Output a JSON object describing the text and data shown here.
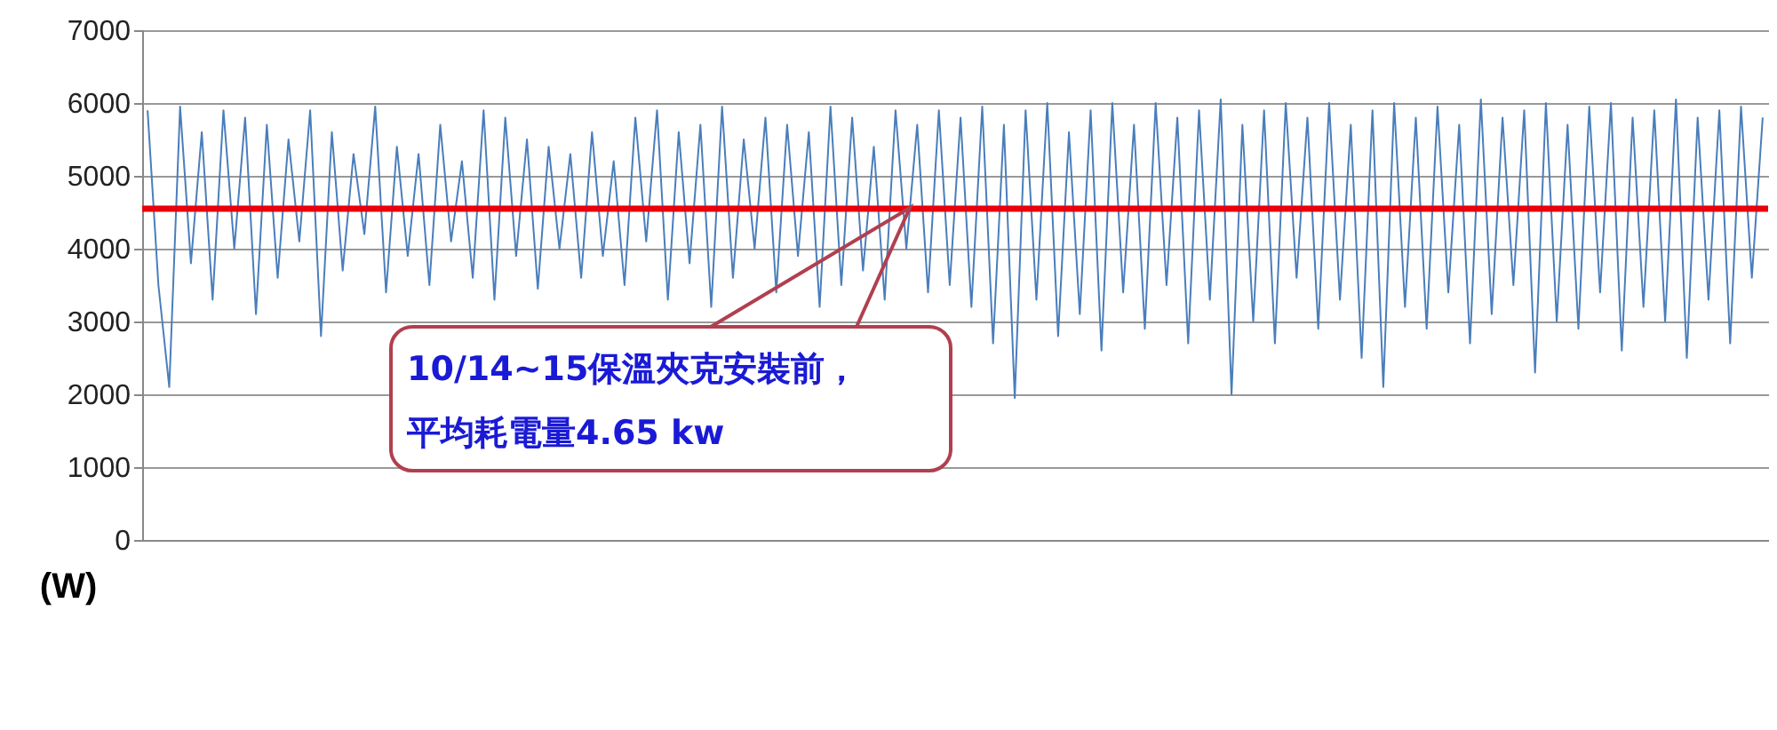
{
  "chart_data": {
    "type": "line",
    "ylabel": "(W)",
    "categories": [
      null,
      null,
      null,
      null,
      null,
      null,
      null,
      null,
      null,
      null,
      null,
      null,
      null,
      null,
      null,
      null,
      null,
      null,
      null,
      null,
      null,
      null,
      null,
      null,
      null,
      null,
      null,
      null,
      null,
      null,
      null,
      null,
      null,
      null,
      null,
      null,
      null,
      null,
      null,
      null,
      null,
      null,
      null,
      null,
      null,
      null,
      null,
      null,
      null,
      null,
      null,
      null,
      null,
      null,
      null,
      null,
      null,
      null,
      null,
      null,
      null,
      null,
      null,
      null,
      null,
      null,
      null,
      null,
      null,
      null,
      null,
      null,
      null,
      null,
      null,
      null,
      null,
      null,
      null,
      null,
      null,
      null,
      null,
      null,
      null,
      null,
      null,
      null,
      null,
      null,
      null,
      null,
      null,
      null,
      null,
      null,
      null,
      null,
      null,
      null,
      null,
      null,
      null,
      null,
      null,
      null,
      null,
      null,
      null,
      null,
      null,
      null,
      null,
      null,
      null,
      null,
      null,
      null,
      null,
      null,
      null,
      null,
      null,
      null,
      null,
      null,
      null,
      null,
      null,
      null,
      null,
      null,
      null,
      null,
      null,
      null,
      null,
      null,
      null,
      null,
      null,
      null,
      null,
      null,
      null,
      null,
      null,
      null,
      null,
      null
    ],
    "series": [
      {
        "color": "#4a7ebb",
        "values": [
          5900,
          3500,
          2100,
          5950,
          3800,
          5600,
          3300,
          5900,
          4000,
          5800,
          3100,
          5700,
          3600,
          5500,
          4100,
          5900,
          2800,
          5600,
          3700,
          5300,
          4200,
          5950,
          3400,
          5400,
          3900,
          5300,
          3500,
          5700,
          4100,
          5200,
          3600,
          5900,
          3300,
          5800,
          3900,
          5500,
          3450,
          5400,
          4000,
          5300,
          3600,
          5600,
          3900,
          5200,
          3500,
          5800,
          4100,
          5900,
          3300,
          5600,
          3800,
          5700,
          3200,
          5950,
          3600,
          5500,
          4000,
          5800,
          3400,
          5700,
          3900,
          5600,
          3200,
          5950,
          3500,
          5800,
          3700,
          5400,
          3300,
          5900,
          4000,
          5700,
          3400,
          5900,
          3500,
          5800,
          3200,
          5950,
          2700,
          5700,
          1950,
          5900,
          3300,
          6000,
          2800,
          5600,
          3100,
          5900,
          2600,
          6000,
          3400,
          5700,
          2900,
          6000,
          3500,
          5800,
          2700,
          5900,
          3300,
          6050,
          2000,
          5700,
          3000,
          5900,
          2700,
          6000,
          3600,
          5800,
          2900,
          6000,
          3300,
          5700,
          2500,
          5900,
          2100,
          6000,
          3200,
          5800,
          2900,
          5950,
          3400,
          5700,
          2700,
          6050,
          3100,
          5800,
          3500,
          5900,
          2300,
          6000,
          3000,
          5700,
          2900,
          5950,
          3400,
          6000,
          2600,
          5800,
          3200,
          5900,
          3000,
          6050,
          2500,
          5800,
          3300,
          5900,
          2700,
          5950,
          3600,
          5800
        ]
      }
    ],
    "ylim": [
      0,
      7000
    ],
    "yticks": [
      0,
      1000,
      2000,
      3000,
      4000,
      5000,
      6000,
      7000
    ],
    "grid": "y",
    "tick_labels": "y",
    "ref_lines": [
      {
        "axis": "y",
        "value": 4550,
        "color": "#e8000b"
      }
    ],
    "annotations": [
      "10/14~15保溫夾克安裝前，",
      "平均耗電量4.65 kw"
    ]
  }
}
